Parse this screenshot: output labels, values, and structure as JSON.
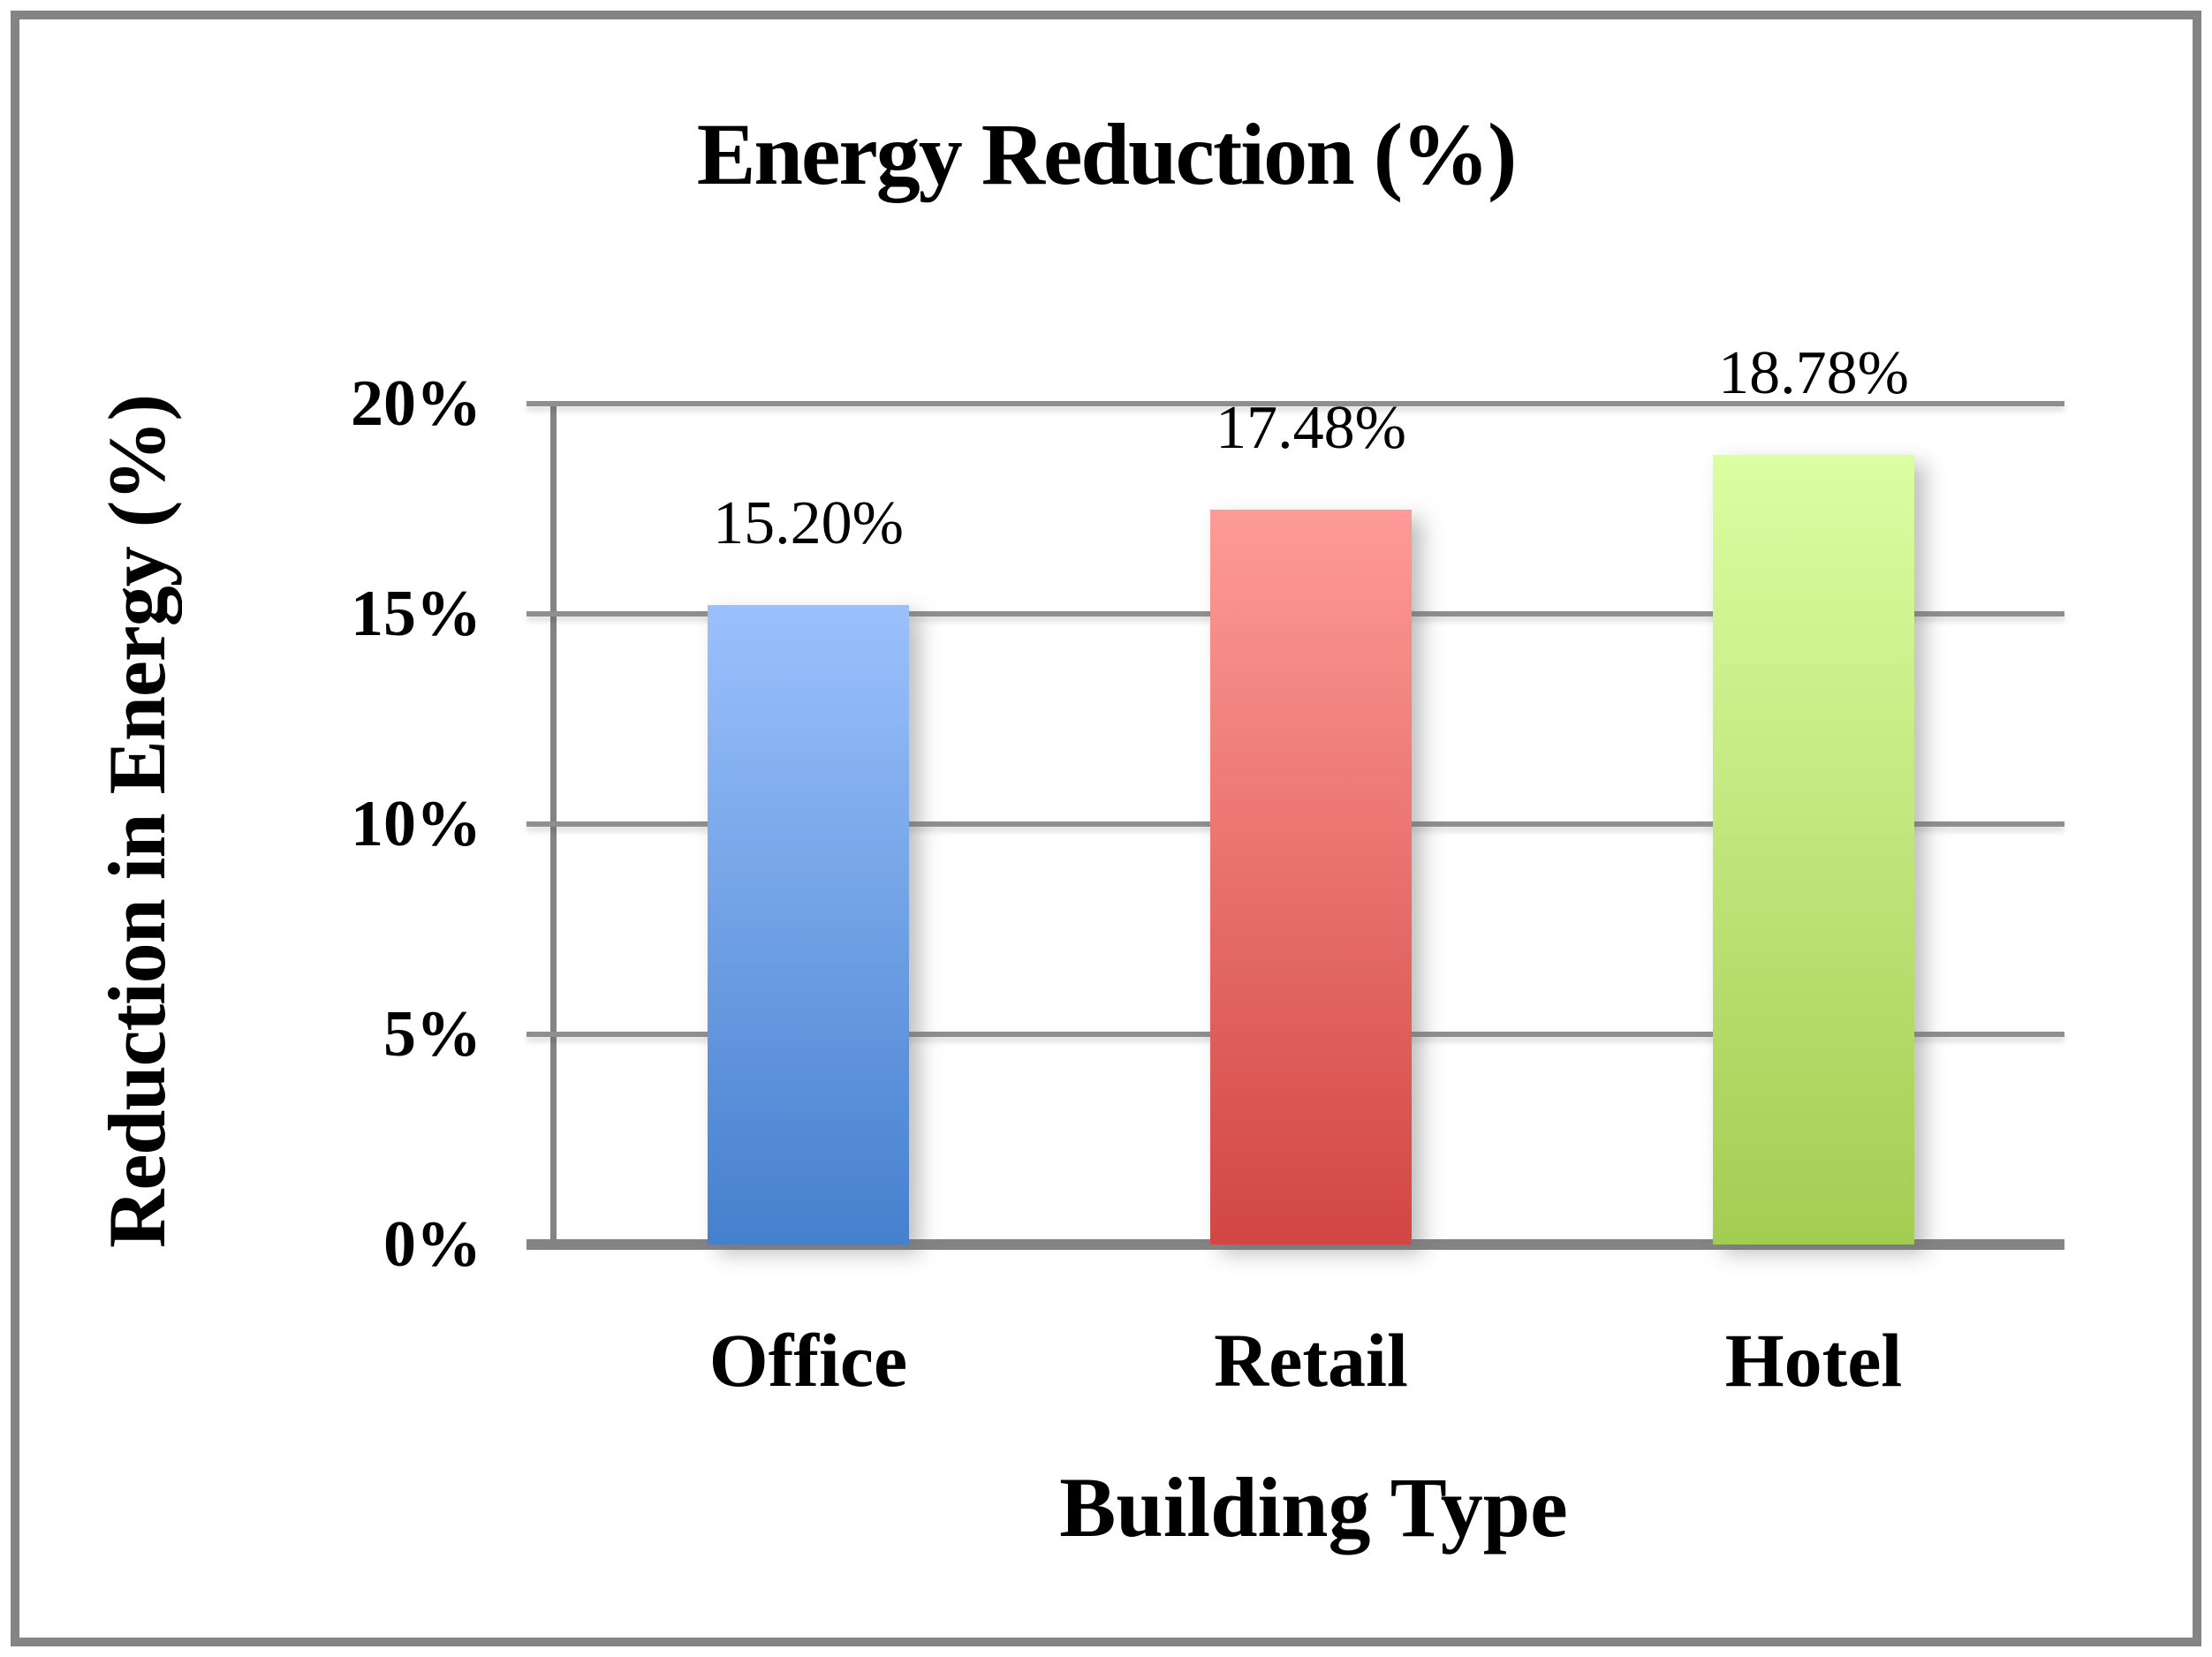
{
  "chart_data": {
    "type": "bar",
    "title": "Energy Reduction (%)",
    "xlabel": "Building Type",
    "ylabel": "Reduction in Energy (%)",
    "categories": [
      "Office",
      "Retail",
      "Hotel"
    ],
    "values": [
      15.2,
      17.48,
      18.78
    ],
    "data_labels": [
      "15.20%",
      "17.48%",
      "18.78%"
    ],
    "y_ticks": [
      "20%",
      "15%",
      "10%",
      "5%",
      "0%"
    ],
    "ylim": [
      0,
      20
    ],
    "grid": true,
    "legend": "none",
    "bar_gradients": [
      {
        "top": "#9BC1FC",
        "bottom": "#4580CE"
      },
      {
        "top": "#FE9B97",
        "bottom": "#D24643"
      },
      {
        "top": "#DBFEA2",
        "bottom": "#A3CD52"
      }
    ],
    "axis_color": "#848484",
    "gridline_color": "#8F8F8F",
    "text_color": "#000000",
    "background_color": "#FFFFFF"
  }
}
